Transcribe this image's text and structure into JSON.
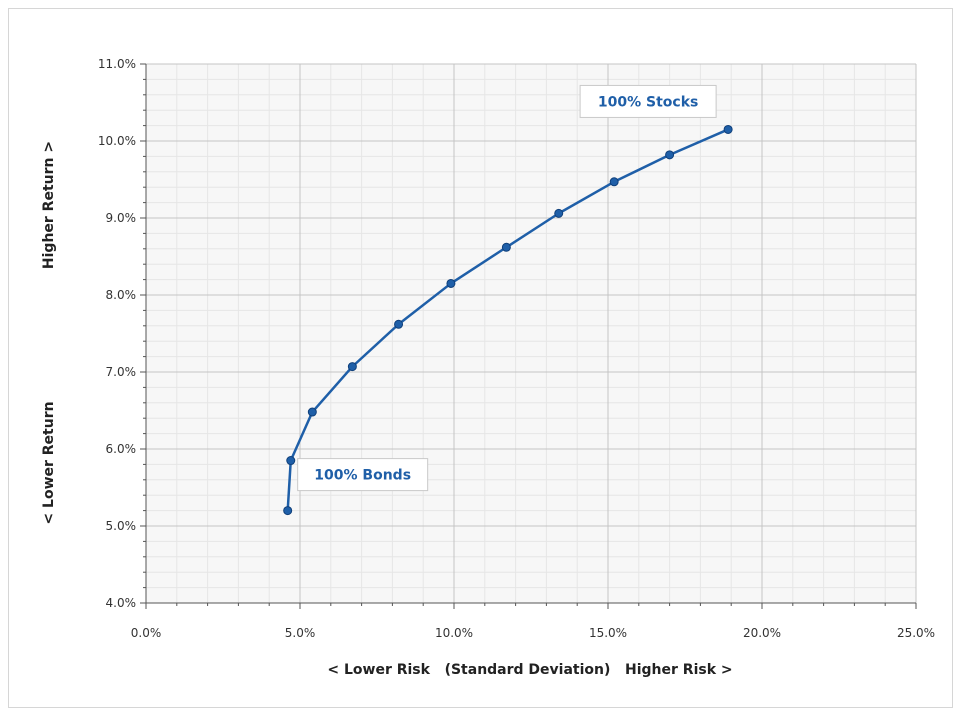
{
  "chart_data": {
    "type": "line",
    "title": "",
    "xlabel": "< Lower Risk   (Standard Deviation)   Higher Risk >",
    "ylabel_upper": "Higher Return >",
    "ylabel_lower": "< Lower Return",
    "xlim": [
      0,
      25
    ],
    "ylim": [
      4,
      11
    ],
    "x_ticks": [
      0,
      5,
      10,
      15,
      20,
      25
    ],
    "x_tick_labels": [
      "0.0%",
      "5.0%",
      "10.0%",
      "15.0%",
      "20.0%",
      "25.0%"
    ],
    "y_ticks": [
      4,
      5,
      6,
      7,
      8,
      9,
      10,
      11
    ],
    "y_tick_labels": [
      "4.0%",
      "5.0%",
      "6.0%",
      "7.0%",
      "8.0%",
      "9.0%",
      "10.0%",
      "11.0%"
    ],
    "grid": true,
    "series": [
      {
        "color": "#1f5fa8",
        "x": [
          4.6,
          4.7,
          5.4,
          6.7,
          8.2,
          9.9,
          11.7,
          13.4,
          15.2,
          17.0,
          18.9
        ],
        "y": [
          5.2,
          5.85,
          6.48,
          7.07,
          7.62,
          8.15,
          8.62,
          9.06,
          9.47,
          9.82,
          10.15
        ]
      }
    ],
    "annotations": [
      {
        "text": "100% Stocks",
        "x": 18.9,
        "y": 10.15
      },
      {
        "text": "100% Bonds",
        "x": 4.6,
        "y": 5.2
      }
    ]
  }
}
